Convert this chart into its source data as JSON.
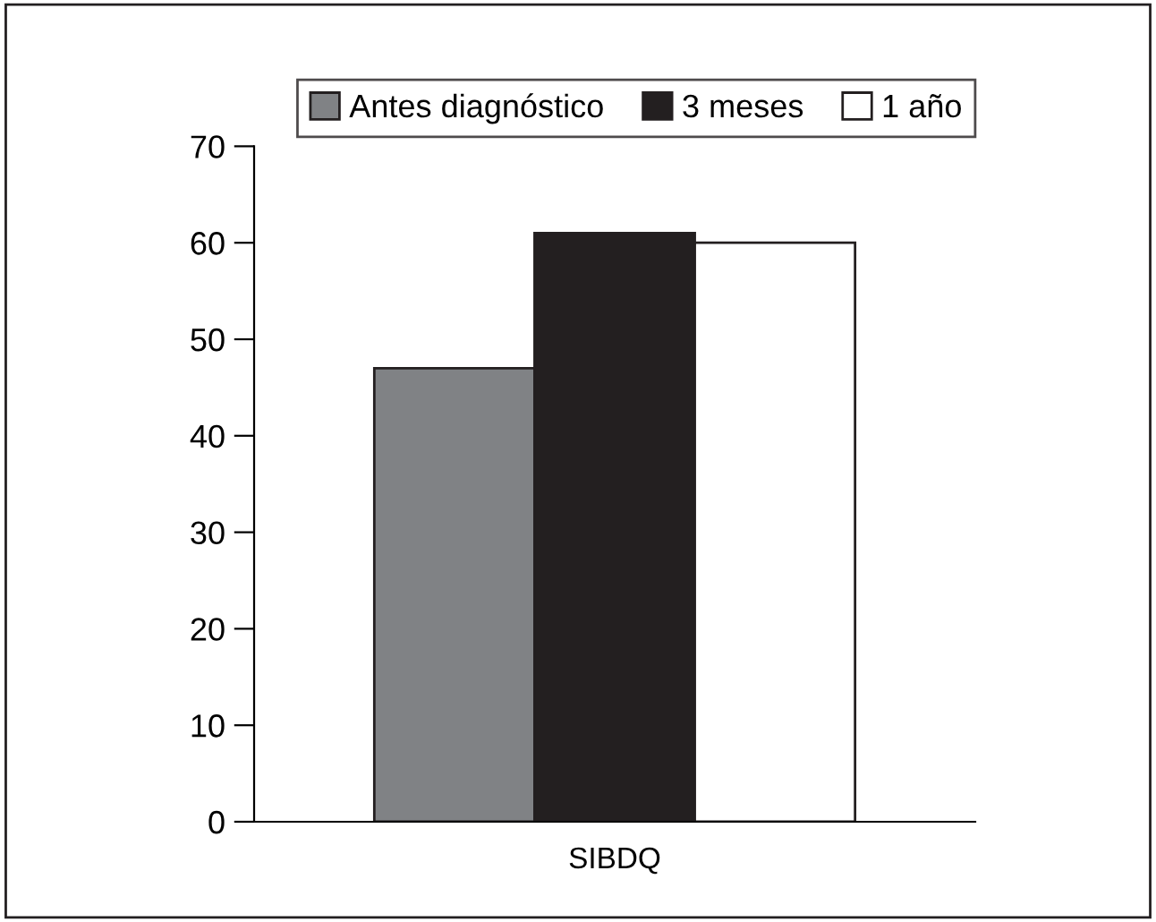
{
  "chart_data": {
    "type": "bar",
    "categories": [
      "SIBDQ"
    ],
    "series": [
      {
        "name": "Antes diagnóstico",
        "color": "#808285",
        "values": [
          47
        ]
      },
      {
        "name": "3 meses",
        "color": "#231f20",
        "values": [
          61
        ]
      },
      {
        "name": "1 año",
        "color": "#ffffff",
        "values": [
          60
        ]
      }
    ],
    "ylim": [
      0,
      70
    ],
    "yticks": [
      0,
      10,
      20,
      30,
      40,
      50,
      60,
      70
    ],
    "grid": false,
    "legend": "top"
  }
}
